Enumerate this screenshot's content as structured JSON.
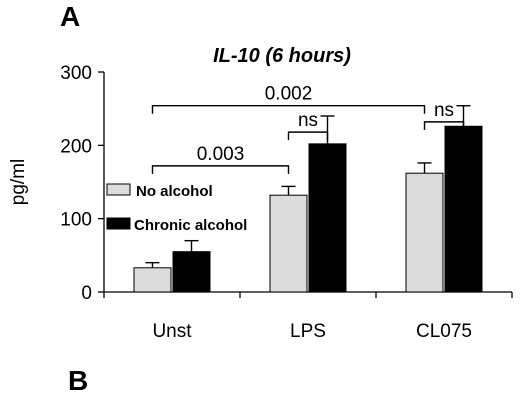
{
  "chart_data": {
    "type": "bar",
    "panel_labels": [
      "A",
      "B"
    ],
    "title": "IL-10 (6 hours)",
    "ylabel": "pg/ml",
    "xlabel": "",
    "ylim": [
      0,
      300
    ],
    "yticks": [
      0,
      100,
      200,
      300
    ],
    "grid": false,
    "categories": [
      "Unst",
      "LPS",
      "CL075"
    ],
    "series": [
      {
        "name": "No alcohol",
        "color": "#dcdcdc",
        "values": [
          33,
          132,
          162
        ],
        "errors": [
          7,
          12,
          14
        ]
      },
      {
        "name": "Chronic alcohol",
        "color": "#000000",
        "values": [
          55,
          202,
          226
        ],
        "errors": [
          15,
          38,
          28
        ]
      }
    ],
    "legend_position": "middle-left",
    "annotations": [
      {
        "text": "0.003",
        "from_category": 0,
        "to_category": 1,
        "y": 172
      },
      {
        "text": "ns",
        "from_category": 1,
        "to_category": 1,
        "y": 218
      },
      {
        "text": "0.002",
        "from_category": 0,
        "to_category": 2,
        "y": 254
      },
      {
        "text": "ns",
        "from_category": 2,
        "to_category": 2,
        "y": 232
      }
    ]
  }
}
